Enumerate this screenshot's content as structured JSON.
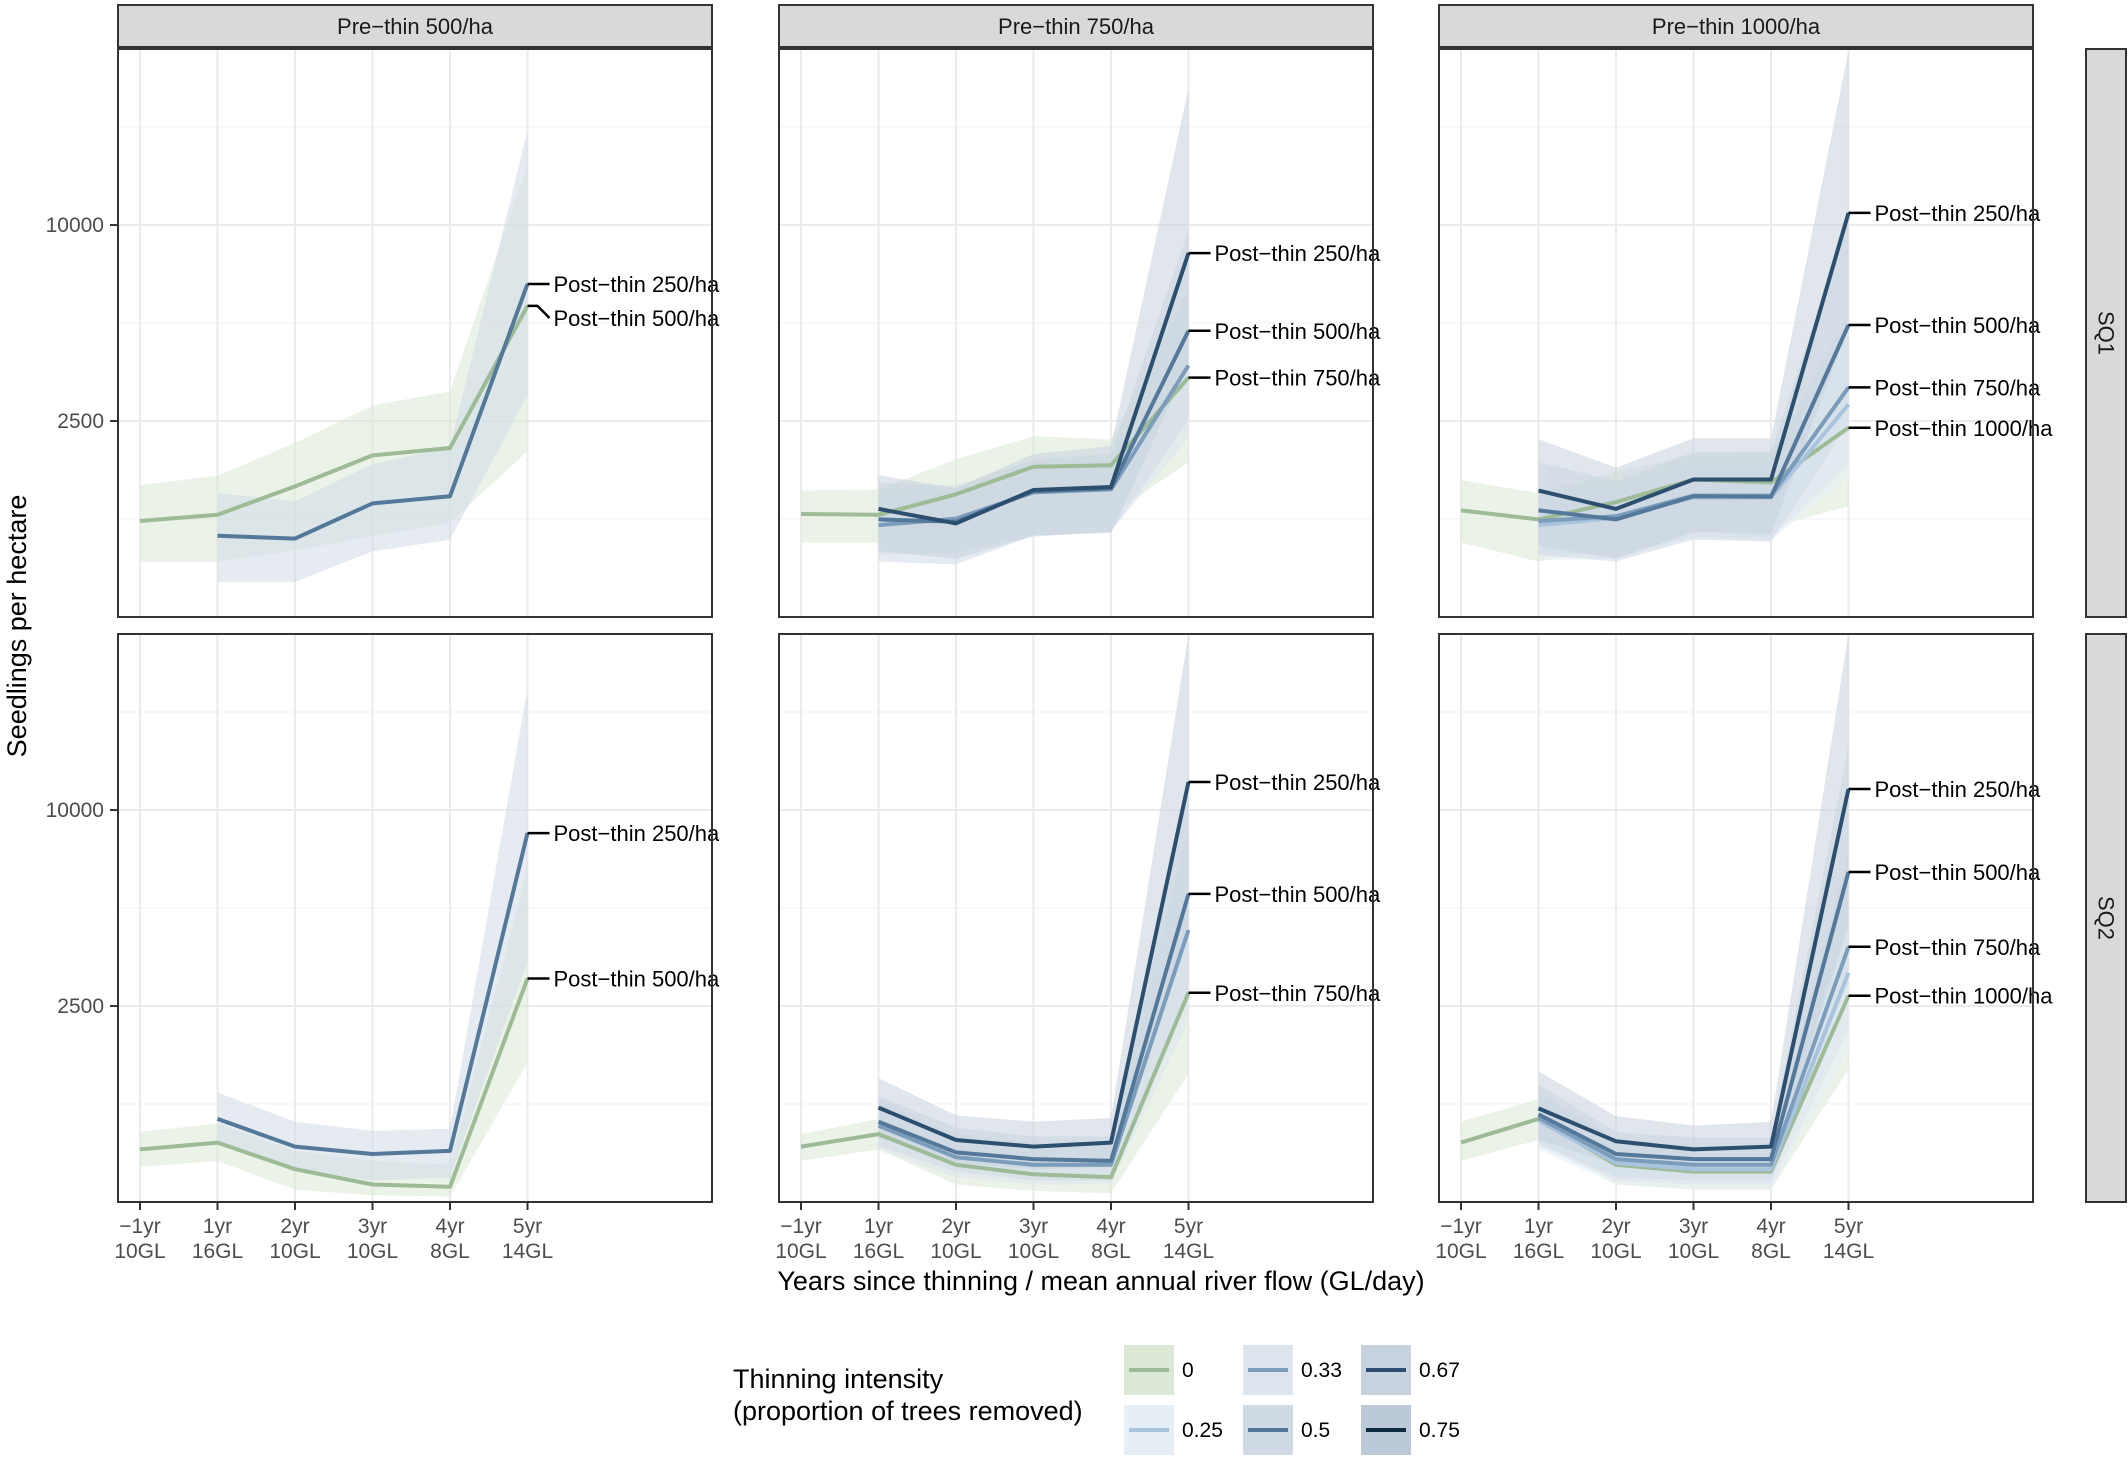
{
  "chart_data": {
    "type": "line",
    "facet_columns": [
      "Pre−thin 500/ha",
      "Pre−thin 750/ha",
      "Pre−thin 1000/ha"
    ],
    "facet_rows": [
      "SQ1",
      "SQ2"
    ],
    "x_categories": [
      {
        "top": "−1yr",
        "bottom": "10GL"
      },
      {
        "top": "1yr",
        "bottom": "16GL"
      },
      {
        "top": "2yr",
        "bottom": "10GL"
      },
      {
        "top": "3yr",
        "bottom": "10GL"
      },
      {
        "top": "4yr",
        "bottom": "8GL"
      },
      {
        "top": "5yr",
        "bottom": "14GL"
      }
    ],
    "xlabel": "Years since thinning / mean annual river flow (GL/day)",
    "ylabel": "Seedlings per hectare",
    "y_scale": "sqrt",
    "y_ticks": [
      2500,
      10000
    ],
    "y_tick_labels": [
      "2500",
      "10000"
    ],
    "ylim": [
      0,
      21000
    ],
    "grid": true,
    "legend": {
      "position": "bottom",
      "title_lines": [
        "Thinning intensity",
        "(proportion of trees removed)"
      ],
      "items": [
        {
          "label": "0",
          "color": "#9cbb96",
          "fill": "#dbe8d6"
        },
        {
          "label": "0.25",
          "color": "#a8c3dd",
          "fill": "#e6eef6"
        },
        {
          "label": "0.33",
          "color": "#7b9cba",
          "fill": "#dce5ee"
        },
        {
          "label": "0.5",
          "color": "#53789a",
          "fill": "#cfdae5"
        },
        {
          "label": "0.67",
          "color": "#2d4f6f",
          "fill": "#c6d2dd"
        },
        {
          "label": "0.75",
          "color": "#0d2a40",
          "fill": "#bccad7"
        }
      ]
    },
    "panels": [
      {
        "col": 0,
        "row": 0,
        "series": [
          {
            "intensity": "0",
            "x_index": [
              0,
              1,
              2,
              3,
              4,
              5
            ],
            "values": [
              600,
              680,
              1110,
              1700,
              1860,
              6300
            ],
            "lower": [
              200,
              200,
              290,
              430,
              580,
              1790
            ],
            "upper": [
              1130,
              1300,
              1970,
              2910,
              3320,
              13300
            ]
          },
          {
            "intensity": "0.5",
            "x_index": [
              1,
              2,
              3,
              4,
              5
            ],
            "values": [
              430,
              400,
              840,
              950,
              7220
            ],
            "lower": [
              80,
              80,
              280,
              390,
              3200
            ],
            "upper": [
              1000,
              870,
              1520,
              1880,
              15420
            ]
          }
        ],
        "annotations": [
          {
            "text": "Post−thin 250/ha",
            "series_value": 7220
          },
          {
            "text": "Post−thin 500/ha",
            "series_value": 6300
          }
        ]
      },
      {
        "col": 1,
        "row": 0,
        "series": [
          {
            "intensity": "0",
            "x_index": [
              0,
              1,
              2,
              3,
              4,
              5
            ],
            "values": [
              690,
              680,
              980,
              1470,
              1500,
              3730
            ],
            "lower": [
              360,
              360,
              420,
              560,
              680,
              1560
            ],
            "upper": [
              1040,
              1060,
              1620,
              2130,
              2050,
              6900
            ]
          },
          {
            "intensity": "0.33",
            "x_index": [
              1,
              2,
              3,
              4,
              5
            ],
            "values": [
              550,
              630,
              1010,
              1060,
              4120
            ],
            "lower": [
              250,
              270,
              420,
              480,
              2080
            ],
            "upper": [
              1000,
              1060,
              1540,
              1600,
              7060
            ]
          },
          {
            "intensity": "0.5",
            "x_index": [
              1,
              2,
              3,
              4,
              5
            ],
            "values": [
              620,
              590,
              1030,
              1080,
              5330
            ],
            "lower": [
              200,
              180,
              430,
              470,
              2530
            ],
            "upper": [
              1170,
              1120,
              1610,
              1740,
              9710
            ]
          },
          {
            "intensity": "0.67",
            "x_index": [
              1,
              2,
              3,
              4,
              5
            ],
            "values": [
              760,
              570,
              1050,
              1100,
              8620
            ],
            "lower": [
              280,
              220,
              430,
              460,
              4170
            ],
            "upper": [
              1310,
              1080,
              1730,
              1900,
              18200
            ]
          }
        ],
        "annotations": [
          {
            "text": "Post−thin 250/ha",
            "series_value": 8620
          },
          {
            "text": "Post−thin 500/ha",
            "series_value": 5330
          },
          {
            "text": "Post−thin 750/ha",
            "series_value": 3730
          }
        ]
      },
      {
        "col": 2,
        "row": 0,
        "series": [
          {
            "intensity": "0",
            "x_index": [
              0,
              1,
              2,
              3,
              4,
              5
            ],
            "values": [
              740,
              620,
              860,
              1230,
              1180,
              2330
            ],
            "lower": [
              360,
              200,
              330,
              480,
              520,
              800
            ],
            "upper": [
              1220,
              1000,
              1370,
              1720,
              1760,
              4800
            ]
          },
          {
            "intensity": "0.25",
            "x_index": [
              1,
              2,
              3,
              4,
              5
            ],
            "values": [
              550,
              640,
              930,
              930,
              2940
            ],
            "lower": [
              210,
              220,
              400,
              380,
              1290
            ],
            "upper": [
              1020,
              1070,
              1500,
              1490,
              5230
            ]
          },
          {
            "intensity": "0.33",
            "x_index": [
              1,
              2,
              3,
              4,
              5
            ],
            "values": [
              600,
              660,
              960,
              960,
              3430
            ],
            "lower": [
              250,
              260,
              420,
              400,
              1510
            ],
            "upper": [
              1080,
              1130,
              1570,
              1600,
              6000
            ]
          },
          {
            "intensity": "0.5",
            "x_index": [
              1,
              2,
              3,
              4,
              5
            ],
            "values": [
              740,
              620,
              950,
              940,
              5550
            ],
            "lower": [
              250,
              200,
              390,
              370,
              2450
            ],
            "upper": [
              1560,
              1200,
              1770,
              1790,
              10300
            ]
          },
          {
            "intensity": "0.67",
            "x_index": [
              1,
              2,
              3,
              4,
              5
            ],
            "values": [
              1040,
              760,
              1230,
              1230,
              10630
            ],
            "lower": [
              330,
              220,
              470,
              450,
              5450
            ],
            "upper": [
              2060,
              1450,
              2080,
              2080,
              20880
            ]
          }
        ],
        "annotations": [
          {
            "text": "Post−thin 250/ha",
            "series_value": 10630
          },
          {
            "text": "Post−thin 500/ha",
            "series_value": 5550
          },
          {
            "text": "Post−thin 750/ha",
            "series_value": 3430
          },
          {
            "text": "Post−thin 1000/ha",
            "series_value": 2330
          }
        ]
      },
      {
        "col": 0,
        "row": 1,
        "series": [
          {
            "intensity": "0",
            "x_index": [
              0,
              1,
              2,
              3,
              4,
              5
            ],
            "values": [
              180,
              230,
              70,
              20,
              15,
              3250
            ],
            "lower": [
              80,
              110,
              10,
              3,
              2,
              1260
            ],
            "upper": [
              320,
              400,
              170,
              110,
              90,
              7220
            ]
          },
          {
            "intensity": "0.5",
            "x_index": [
              1,
              2,
              3,
              4,
              5
            ],
            "values": [
              450,
              200,
              150,
              170,
              8860
            ],
            "lower": [
              220,
              70,
              30,
              40,
              3760
            ],
            "upper": [
              780,
              420,
              330,
              350,
              17160
            ]
          }
        ],
        "annotations": [
          {
            "text": "Post−thin 250/ha",
            "series_value": 8860
          },
          {
            "text": "Post−thin 500/ha",
            "series_value": 3250
          }
        ]
      },
      {
        "col": 1,
        "row": 1,
        "series": [
          {
            "intensity": "0",
            "x_index": [
              0,
              1,
              2,
              3,
              4,
              5
            ],
            "values": [
              200,
              300,
              90,
              50,
              40,
              2850
            ],
            "lower": [
              110,
              180,
              20,
              8,
              5,
              1070
            ],
            "upper": [
              300,
              450,
              200,
              140,
              120,
              6430
            ]
          },
          {
            "intensity": "0.33",
            "x_index": [
              1,
              2,
              3,
              4,
              5
            ],
            "values": [
              380,
              130,
              90,
              90,
              4820
            ],
            "lower": [
              180,
              40,
              20,
              20,
              2150
            ],
            "upper": [
              680,
              300,
              230,
              230,
              9200
            ]
          },
          {
            "intensity": "0.5",
            "x_index": [
              1,
              2,
              3,
              4,
              5
            ],
            "values": [
              420,
              160,
              120,
              110,
              6180
            ],
            "lower": [
              200,
              60,
              30,
              30,
              2760
            ],
            "upper": [
              730,
              360,
              280,
              280,
              11750
            ]
          },
          {
            "intensity": "0.67",
            "x_index": [
              1,
              2,
              3,
              4,
              5
            ],
            "values": [
              580,
              250,
              200,
              230,
              11480
            ],
            "lower": [
              270,
              100,
              70,
              80,
              5080
            ],
            "upper": [
              1000,
              490,
              420,
              460,
              21000
            ]
          }
        ],
        "annotations": [
          {
            "text": "Post−thin 250/ha",
            "series_value": 11480
          },
          {
            "text": "Post−thin 500/ha",
            "series_value": 6180
          },
          {
            "text": "Post−thin 750/ha",
            "series_value": 2850
          }
        ]
      },
      {
        "col": 2,
        "row": 1,
        "series": [
          {
            "intensity": "0",
            "x_index": [
              0,
              1,
              2,
              3,
              4,
              5
            ],
            "values": [
              230,
              450,
              90,
              60,
              60,
              2770
            ],
            "lower": [
              110,
              250,
              20,
              10,
              10,
              1150
            ],
            "upper": [
              420,
              690,
              220,
              160,
              160,
              5600
            ]
          },
          {
            "intensity": "0.25",
            "x_index": [
              1,
              2,
              3,
              4,
              5
            ],
            "values": [
              430,
              100,
              70,
              70,
              3420
            ],
            "lower": [
              180,
              20,
              10,
              10,
              1500
            ],
            "upper": [
              750,
              230,
              180,
              180,
              6600
            ]
          },
          {
            "intensity": "0.33",
            "x_index": [
              1,
              2,
              3,
              4,
              5
            ],
            "values": [
              460,
              120,
              90,
              90,
              4240
            ],
            "lower": [
              200,
              30,
              20,
              20,
              1900
            ],
            "upper": [
              800,
              260,
              210,
              210,
              8000
            ]
          },
          {
            "intensity": "0.5",
            "x_index": [
              1,
              2,
              3,
              4,
              5
            ],
            "values": [
              500,
              150,
              120,
              120,
              7090
            ],
            "lower": [
              220,
              40,
              30,
              30,
              3100
            ],
            "upper": [
              900,
              320,
              270,
              270,
              13500
            ]
          },
          {
            "intensity": "0.67",
            "x_index": [
              1,
              2,
              3,
              4,
              5
            ],
            "values": [
              570,
              240,
              180,
              200,
              11100
            ],
            "lower": [
              250,
              90,
              60,
              70,
              5000
            ],
            "upper": [
              1110,
              480,
              380,
              420,
              21000
            ]
          }
        ],
        "annotations": [
          {
            "text": "Post−thin 250/ha",
            "series_value": 11100
          },
          {
            "text": "Post−thin 500/ha",
            "series_value": 7090
          },
          {
            "text": "Post−thin 750/ha",
            "series_value": 4240
          },
          {
            "text": "Post−thin 1000/ha",
            "series_value": 2770
          }
        ]
      }
    ]
  }
}
